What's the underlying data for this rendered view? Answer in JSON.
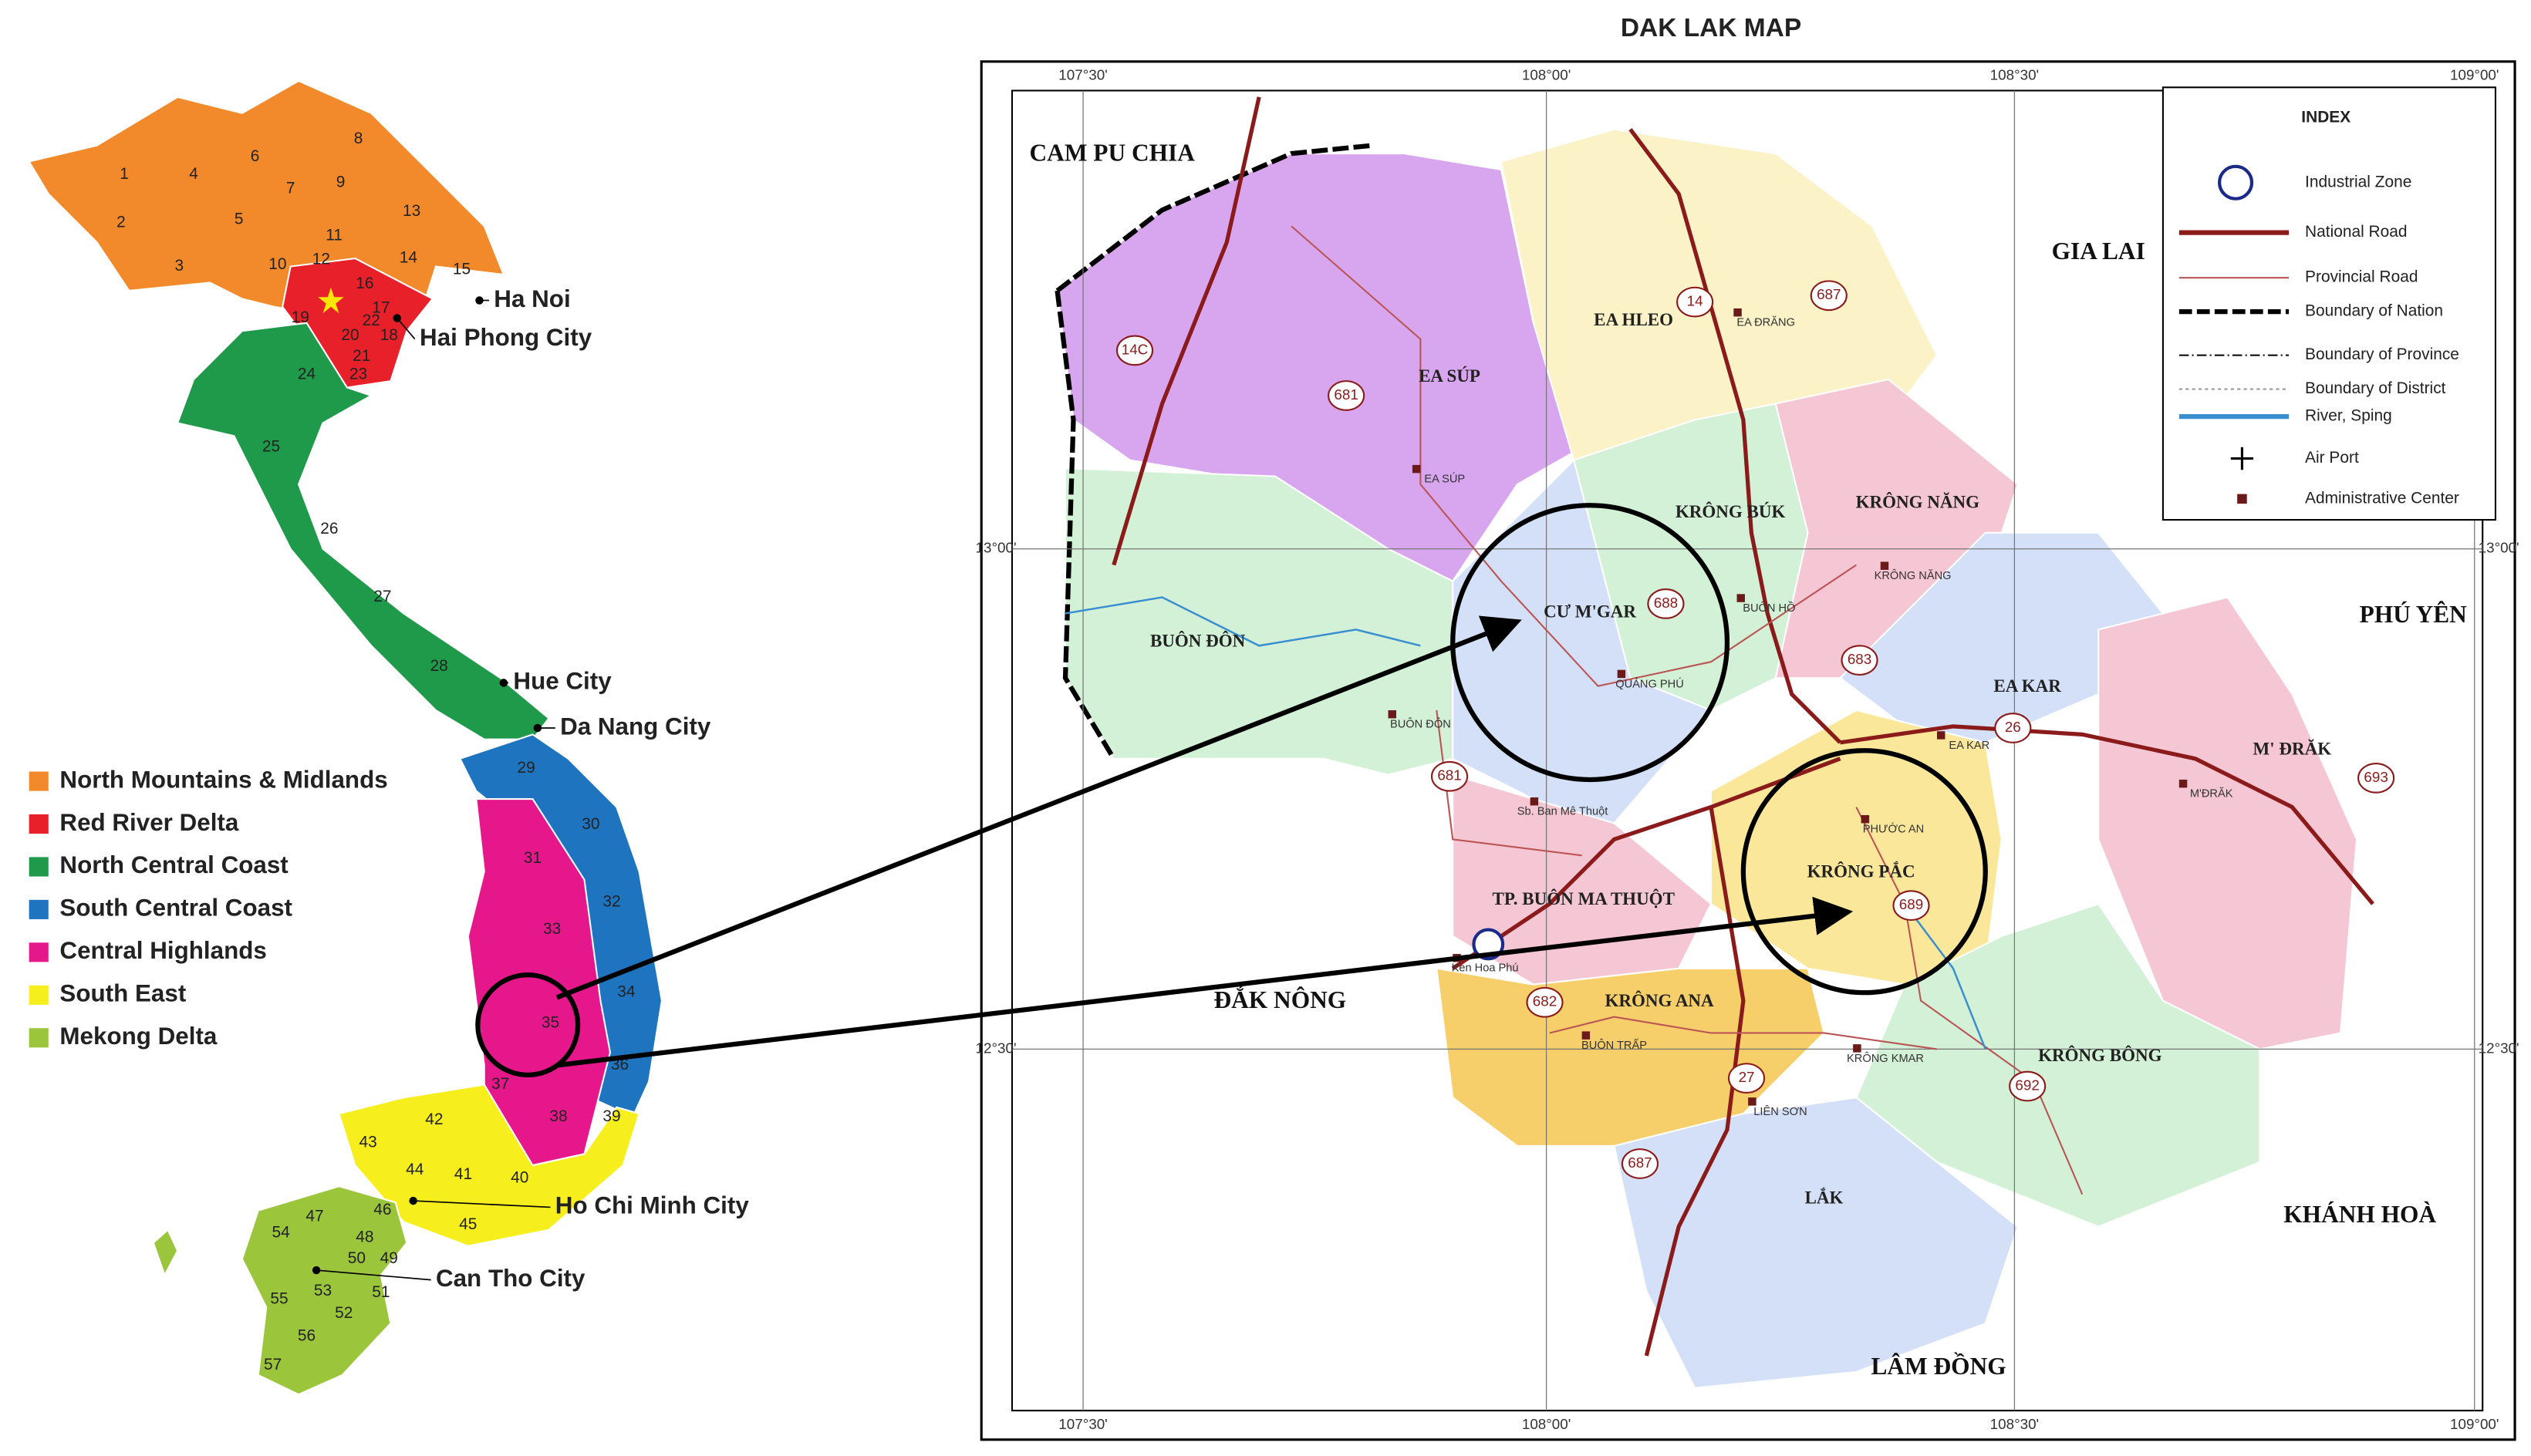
{
  "vietnam_map": {
    "regions": [
      "1",
      "2",
      "3",
      "4",
      "5",
      "6",
      "7",
      "8",
      "9",
      "10",
      "11",
      "12",
      "13",
      "14",
      "15",
      "16",
      "17",
      "18",
      "19",
      "20",
      "21",
      "22",
      "23",
      "24",
      "25",
      "26",
      "27",
      "28",
      "29",
      "30",
      "31",
      "32",
      "33",
      "34",
      "35",
      "36",
      "37",
      "38",
      "39",
      "40",
      "41",
      "42",
      "43",
      "44",
      "45",
      "46",
      "47",
      "48",
      "49",
      "50",
      "51",
      "52",
      "53",
      "54",
      "55",
      "56",
      "57"
    ],
    "cities": [
      "Ha Noi",
      "Hai Phong City",
      "Hue City",
      "Da Nang City",
      "Ho Chi Minh City",
      "Can Tho City"
    ],
    "legend": [
      {
        "label": "North Mountains & Midlands",
        "color": "#f28a2b"
      },
      {
        "label": "Red River Delta",
        "color": "#e8202a"
      },
      {
        "label": "North Central Coast",
        "color": "#1f9a4a"
      },
      {
        "label": "South Central Coast",
        "color": "#1f74c0"
      },
      {
        "label": "Central Highlands",
        "color": "#e6178a"
      },
      {
        "label": "South East",
        "color": "#f7ee1e"
      },
      {
        "label": "Mekong Delta",
        "color": "#9bc63c"
      }
    ]
  },
  "dak_lak_map": {
    "title": "DAK LAK MAP",
    "lon_labels": [
      "107°30'",
      "108°00'",
      "108°30'",
      "109°00'"
    ],
    "lat_labels": [
      "13°00'",
      "12°30'"
    ],
    "neighbors": [
      "CAM PU CHIA",
      "GIA LAI",
      "PHÚ YÊN",
      "KHÁNH HOÀ",
      "LÂM ĐỒNG",
      "ĐẮK NÔNG"
    ],
    "districts": [
      "EA SÚP",
      "EA HLEO",
      "KRÔNG BÚK",
      "KRÔNG NĂNG",
      "CƯ M'GAR",
      "BUÔN ĐÔN",
      "EA KAR",
      "M' ĐRĂK",
      "KRÔNG PẮC",
      "TP. BUÔN MA THUỘT",
      "KRÔNG ANA",
      "KRÔNG BÔNG",
      "LẮK"
    ],
    "towns": [
      "EA SÚP",
      "EA ĐRĂNG",
      "BUÔN HỒ",
      "KRÔNG NĂNG",
      "QUẢNG PHÚ",
      "BUÔN ĐÔN",
      "EA KAR",
      "M'ĐRĂK",
      "PHƯỚC AN",
      "BUÔN TRẤP",
      "KRÔNG KMAR",
      "LIÊN SƠN",
      "Sb. Ban Mê Thuột",
      "Ken Hoa Phú"
    ],
    "roads": [
      "14C",
      "681",
      "14",
      "687",
      "688",
      "683",
      "26",
      "693",
      "689",
      "682",
      "27",
      "692",
      "687",
      "681"
    ],
    "index": {
      "title": "INDEX",
      "items": [
        "Industrial Zone",
        "National Road",
        "Provincial Road",
        "Boundary of Nation",
        "Boundary of Province",
        "Boundary of District",
        "River, Sping",
        "Air Port",
        "Administrative Center"
      ]
    }
  }
}
